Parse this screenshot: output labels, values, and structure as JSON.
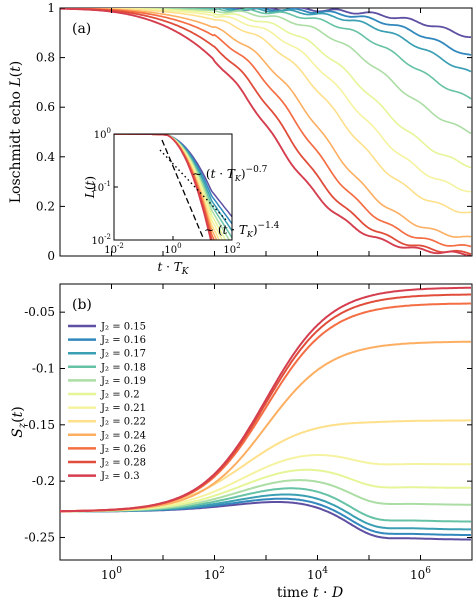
{
  "chart_data": [
    {
      "type": "line",
      "panel_label": "(a)",
      "xlabel": "",
      "ylabel": "Loschmidt echo L(t)",
      "xscale": "log",
      "xlim_exp": [
        -1,
        7
      ],
      "ylim": [
        0,
        1
      ],
      "yticks": [
        "0",
        "0.2",
        "0.4",
        "0.6",
        "0.8",
        "1"
      ],
      "grid": false,
      "series_values": [
        {
          "J2": 0.15,
          "color": "#5e4fa2",
          "final": 0.79,
          "tmid_exp": 6.9,
          "width": 1.4
        },
        {
          "J2": 0.16,
          "color": "#3288bd",
          "final": 0.7,
          "tmid_exp": 6.6,
          "width": 1.4
        },
        {
          "J2": 0.17,
          "color": "#3a9fb3",
          "final": 0.64,
          "tmid_exp": 6.3,
          "width": 1.3
        },
        {
          "J2": 0.18,
          "color": "#66c2a5",
          "final": 0.55,
          "tmid_exp": 5.9,
          "width": 1.2
        },
        {
          "J2": 0.19,
          "color": "#abdda4",
          "final": 0.43,
          "tmid_exp": 5.5,
          "width": 1.2
        },
        {
          "J2": 0.2,
          "color": "#e6f598",
          "final": 0.31,
          "tmid_exp": 5.1,
          "width": 1.2
        },
        {
          "J2": 0.21,
          "color": "#f5f3a0",
          "final": 0.22,
          "tmid_exp": 4.8,
          "width": 1.2
        },
        {
          "J2": 0.22,
          "color": "#fee08b",
          "final": 0.14,
          "tmid_exp": 4.5,
          "width": 1.2
        },
        {
          "J2": 0.24,
          "color": "#fdae61",
          "final": 0.05,
          "tmid_exp": 4.1,
          "width": 1.2
        },
        {
          "J2": 0.26,
          "color": "#f46d43",
          "final": 0.02,
          "tmid_exp": 3.8,
          "width": 1.3
        },
        {
          "J2": 0.28,
          "color": "#e04d3b",
          "final": 0.0,
          "tmid_exp": 3.5,
          "width": 1.4
        },
        {
          "J2": 0.3,
          "color": "#d53e4f",
          "final": 0.0,
          "tmid_exp": 3.2,
          "width": 1.5
        }
      ],
      "inset": {
        "xlabel": "t · T_K",
        "ylabel": "L(t)",
        "xticks": [
          "10^-2",
          "10^0",
          "10^2"
        ],
        "yticks": [
          "10^-2",
          "10^-1",
          "10^0"
        ],
        "annotations": [
          "~ (t · T_K)^-0.7",
          "~ (t · T_K)^-1.4"
        ]
      }
    },
    {
      "type": "line",
      "panel_label": "(b)",
      "xlabel": "time t · D",
      "ylabel": "S_z(t)",
      "xscale": "log",
      "xlim_exp": [
        -1,
        7
      ],
      "ylim": [
        -0.27,
        -0.025
      ],
      "xticks": [
        "10^0",
        "10^2",
        "10^4",
        "10^6"
      ],
      "yticks": [
        "-0.05",
        "-0.1",
        "-0.15",
        "-0.2",
        "-0.25"
      ],
      "grid": false,
      "legend_position": "left",
      "series": [
        {
          "name": "J_2 = 0.15",
          "color": "#5e4fa2",
          "peak": -0.212,
          "final": -0.252
        },
        {
          "name": "J_2 = 0.16",
          "color": "#3288bd",
          "peak": -0.208,
          "final": -0.248
        },
        {
          "name": "J_2 = 0.17",
          "color": "#3a9fb3",
          "peak": -0.203,
          "final": -0.243
        },
        {
          "name": "J_2 = 0.18",
          "color": "#66c2a5",
          "peak": -0.196,
          "final": -0.236
        },
        {
          "name": "J_2 = 0.19",
          "color": "#abdda4",
          "peak": -0.188,
          "final": -0.221
        },
        {
          "name": "J_2 = 0.2",
          "color": "#e6f598",
          "peak": -0.178,
          "final": -0.206
        },
        {
          "name": "J_2 = 0.21",
          "color": "#f5f3a0",
          "peak": -0.165,
          "final": -0.185
        },
        {
          "name": "J_2 = 0.22",
          "color": "#fee08b",
          "peak": -0.143,
          "final": -0.146
        },
        {
          "name": "J_2 = 0.24",
          "color": "#fdae61",
          "peak": -0.076,
          "final": -0.076
        },
        {
          "name": "J_2 = 0.26",
          "color": "#f46d43",
          "peak": -0.042,
          "final": -0.042
        },
        {
          "name": "J_2 = 0.28",
          "color": "#e04d3b",
          "peak": -0.034,
          "final": -0.034
        },
        {
          "name": "J_2 = 0.3",
          "color": "#d53e4f",
          "peak": -0.028,
          "final": -0.028
        }
      ]
    }
  ]
}
